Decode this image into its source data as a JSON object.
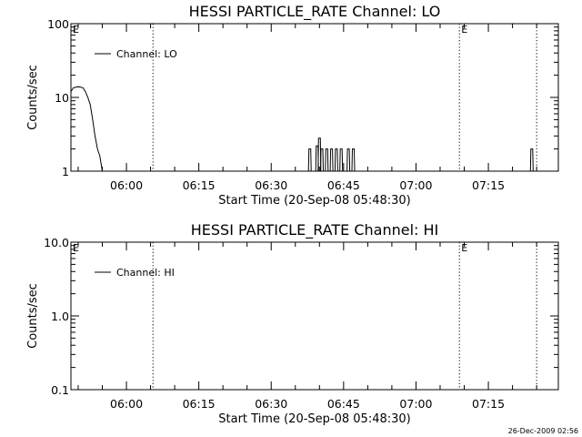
{
  "chart_data": [
    {
      "type": "line",
      "title": "HESSI PARTICLE_RATE Channel: LO",
      "xlabel": "Start Time (20-Sep-08 05:48:30)",
      "ylabel": "Counts/sec",
      "yscale": "log",
      "ylim": [
        1,
        100
      ],
      "xlim": [
        "05:48:30",
        "07:29:30"
      ],
      "x_ticks": [
        "06:00",
        "06:15",
        "06:30",
        "06:45",
        "07:00",
        "07:15"
      ],
      "y_ticks": [
        "1",
        "10",
        "100"
      ],
      "legend": {
        "label": "Channel: LO",
        "position": "top-left"
      },
      "event_lines": [
        {
          "time": "06:05:30",
          "label": ""
        },
        {
          "time": "07:09:00",
          "label": "E"
        },
        {
          "time": "07:25:00",
          "label": ""
        }
      ],
      "left_marker": "E",
      "series": [
        {
          "name": "Channel: LO",
          "points": [
            [
              "05:48:30",
              12
            ],
            [
              "05:49:00",
              13.5
            ],
            [
              "05:50:00",
              14
            ],
            [
              "05:51:00",
              13.5
            ],
            [
              "05:51:30",
              12
            ],
            [
              "05:52:00",
              10
            ],
            [
              "05:52:30",
              8
            ],
            [
              "05:53:00",
              5
            ],
            [
              "05:53:30",
              3
            ],
            [
              "05:54:00",
              2
            ],
            [
              "05:54:30",
              1.6
            ],
            [
              "05:55:00",
              1
            ]
          ],
          "spikes": [
            {
              "time": "06:38:00",
              "value": 2.0
            },
            {
              "time": "06:39:30",
              "value": 2.2
            },
            {
              "time": "06:40:00",
              "value": 2.8
            },
            {
              "time": "06:40:30",
              "value": 2.0
            },
            {
              "time": "06:41:30",
              "value": 2.0
            },
            {
              "time": "06:42:30",
              "value": 2.0
            },
            {
              "time": "06:43:30",
              "value": 2.0
            },
            {
              "time": "06:44:30",
              "value": 2.0
            },
            {
              "time": "06:46:00",
              "value": 2.0
            },
            {
              "time": "06:47:00",
              "value": 2.0
            },
            {
              "time": "07:24:00",
              "value": 2.0
            }
          ]
        }
      ]
    },
    {
      "type": "line",
      "title": "HESSI PARTICLE_RATE Channel: HI",
      "xlabel": "Start Time (20-Sep-08 05:48:30)",
      "ylabel": "Counts/sec",
      "yscale": "log",
      "ylim": [
        0.1,
        10
      ],
      "xlim": [
        "05:48:30",
        "07:29:30"
      ],
      "x_ticks": [
        "06:00",
        "06:15",
        "06:30",
        "06:45",
        "07:00",
        "07:15"
      ],
      "y_ticks": [
        "0.1",
        "1.0",
        "10.0"
      ],
      "legend": {
        "label": "Channel: HI",
        "position": "top-left"
      },
      "event_lines": [
        {
          "time": "06:05:30",
          "label": ""
        },
        {
          "time": "07:09:00",
          "label": "E"
        },
        {
          "time": "07:25:00",
          "label": ""
        }
      ],
      "left_marker": "E",
      "series": [
        {
          "name": "Channel: HI",
          "points": [],
          "spikes": []
        }
      ]
    }
  ],
  "footer": {
    "timestamp": "26-Dec-2009 02:56"
  }
}
